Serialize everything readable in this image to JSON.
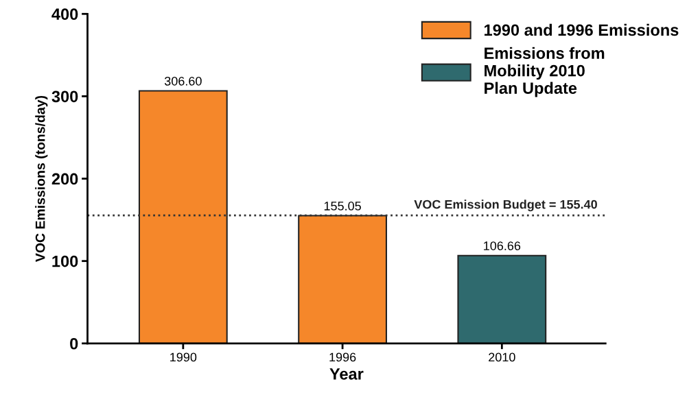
{
  "chart_data": {
    "type": "bar",
    "xlabel": "Year",
    "ylabel": "VOC Emissions (tons/day)",
    "categories": [
      "1990",
      "1996",
      "2010"
    ],
    "series": [
      {
        "name": "1990 and 1996 Emissions",
        "color": "#f5872a",
        "values": [
          306.6,
          155.05,
          null
        ],
        "value_labels": [
          "306.60",
          "155.05",
          null
        ]
      },
      {
        "name": "Emissions from\nMobility 2010\nPlan Update",
        "color": "#2f6a6e",
        "values": [
          null,
          null,
          106.66
        ],
        "value_labels": [
          null,
          null,
          "106.66"
        ]
      }
    ],
    "ylim": [
      0,
      400
    ],
    "yticks": [
      0,
      100,
      200,
      300,
      400
    ],
    "ref_lines": [
      {
        "axis": "y",
        "value": 155.4,
        "label": "VOC Emission Budget = 155.40",
        "color": "#333333",
        "line_style": "dotted"
      }
    ],
    "grid": false,
    "legend": "top right"
  }
}
